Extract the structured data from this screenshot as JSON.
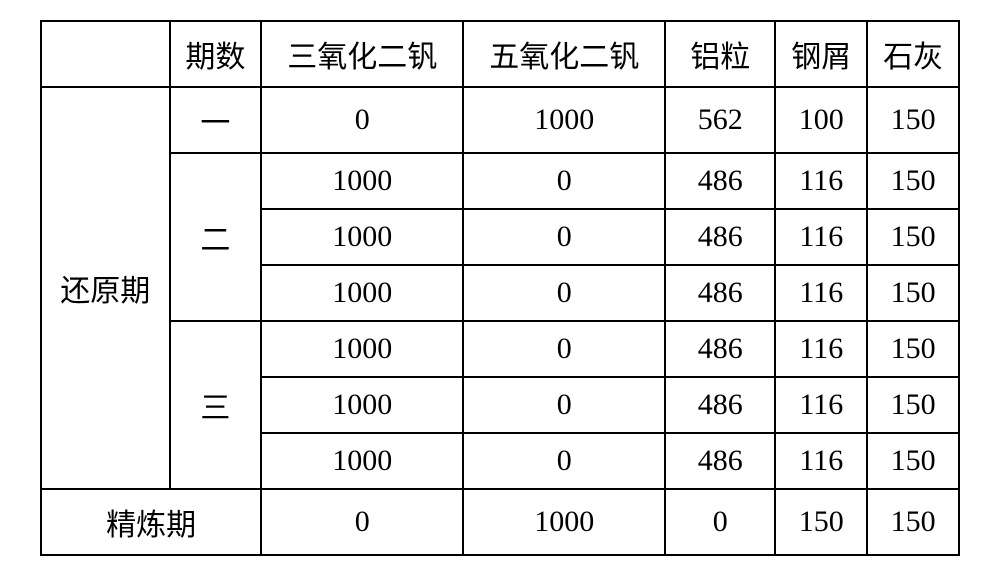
{
  "table": {
    "type": "table",
    "border_color": "#000000",
    "border_width": 2,
    "background_color": "#ffffff",
    "font_family": "SimSun",
    "font_size_pt": 22,
    "text_color": "#000000",
    "header": {
      "blank": "",
      "period_num": "期数",
      "v2o3": "三氧化二钒",
      "v2o5": "五氧化二钒",
      "al": "铝粒",
      "steel": "钢屑",
      "lime": "石灰"
    },
    "reduction_label": "还原期",
    "refining_label": "精炼期",
    "reduction_periods": [
      {
        "label": "一",
        "rows": [
          {
            "v2o3": "0",
            "v2o5": "1000",
            "al": "562",
            "steel": "100",
            "lime": "150"
          }
        ]
      },
      {
        "label": "二",
        "rows": [
          {
            "v2o3": "1000",
            "v2o5": "0",
            "al": "486",
            "steel": "116",
            "lime": "150"
          },
          {
            "v2o3": "1000",
            "v2o5": "0",
            "al": "486",
            "steel": "116",
            "lime": "150"
          },
          {
            "v2o3": "1000",
            "v2o5": "0",
            "al": "486",
            "steel": "116",
            "lime": "150"
          }
        ]
      },
      {
        "label": "三",
        "rows": [
          {
            "v2o3": "1000",
            "v2o5": "0",
            "al": "486",
            "steel": "116",
            "lime": "150"
          },
          {
            "v2o3": "1000",
            "v2o5": "0",
            "al": "486",
            "steel": "116",
            "lime": "150"
          },
          {
            "v2o3": "1000",
            "v2o5": "0",
            "al": "486",
            "steel": "116",
            "lime": "150"
          }
        ]
      }
    ],
    "refining_row": {
      "v2o3": "0",
      "v2o5": "1000",
      "al": "0",
      "steel": "150",
      "lime": "150"
    },
    "column_widths_pct": [
      14,
      10,
      22,
      22,
      12,
      10,
      10
    ]
  }
}
